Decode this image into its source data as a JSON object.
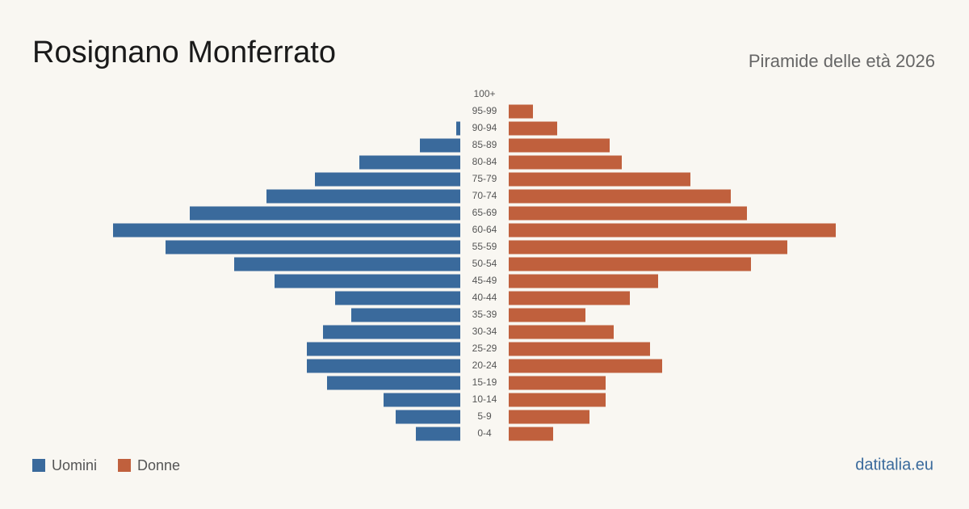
{
  "chart_data": {
    "type": "pyramid",
    "title": "Rosignano Monferrato",
    "subtitle": "Piramide delle età 2026",
    "source": "datitalia.eu",
    "categories": [
      "100+",
      "95-99",
      "90-94",
      "85-89",
      "80-84",
      "75-79",
      "70-74",
      "65-69",
      "60-64",
      "55-59",
      "50-54",
      "45-49",
      "40-44",
      "35-39",
      "30-34",
      "25-29",
      "20-24",
      "15-19",
      "10-14",
      "5-9",
      "0-4"
    ],
    "series": [
      {
        "name": "Uomini",
        "color": "#3a6a9c",
        "values": [
          0,
          0,
          1,
          10,
          25,
          36,
          48,
          67,
          86,
          73,
          56,
          46,
          31,
          27,
          34,
          38,
          38,
          33,
          19,
          16,
          11
        ]
      },
      {
        "name": "Donne",
        "color": "#c0603d",
        "values": [
          0,
          6,
          12,
          25,
          28,
          45,
          55,
          59,
          81,
          69,
          60,
          37,
          30,
          19,
          26,
          35,
          38,
          24,
          24,
          20,
          11
        ]
      }
    ]
  }
}
